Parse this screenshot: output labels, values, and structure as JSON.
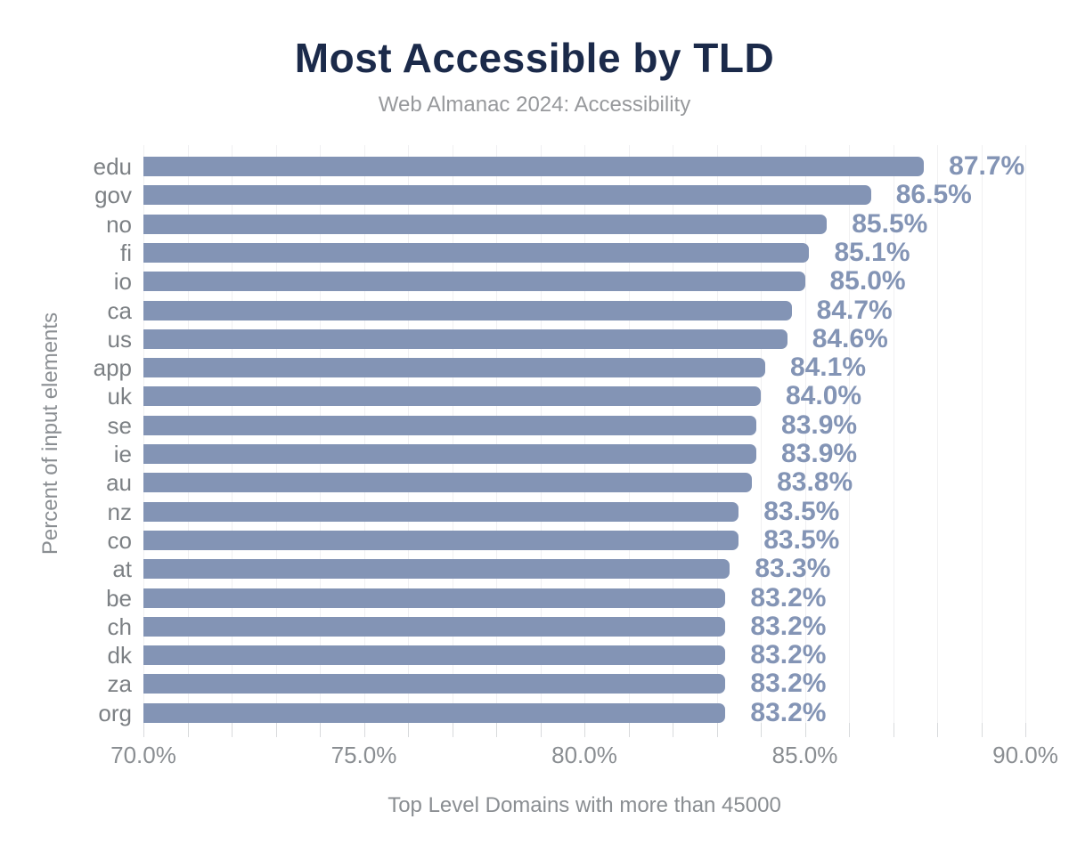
{
  "chart_data": {
    "type": "bar",
    "orientation": "horizontal",
    "title": "Most Accessible by TLD",
    "subtitle": "Web Almanac 2024: Accessibility",
    "xlabel": "Top Level Domains with more than 45000",
    "ylabel": "Percent of input elements",
    "xlim": [
      70,
      90
    ],
    "grid": "vertical gridlines every 1%, ticks below axis every 1%",
    "legend": "none",
    "x_ticks": [
      {
        "value": 70,
        "label": "70.0%"
      },
      {
        "value": 75,
        "label": "75.0%"
      },
      {
        "value": 80,
        "label": "80.0%"
      },
      {
        "value": 85,
        "label": "85.0%"
      },
      {
        "value": 90,
        "label": "90.0%"
      }
    ],
    "categories": [
      "edu",
      "gov",
      "no",
      "fi",
      "io",
      "ca",
      "us",
      "app",
      "uk",
      "se",
      "ie",
      "au",
      "nz",
      "co",
      "at",
      "be",
      "ch",
      "dk",
      "za",
      "org"
    ],
    "values": [
      87.7,
      86.5,
      85.5,
      85.1,
      85.0,
      84.7,
      84.6,
      84.1,
      84.0,
      83.9,
      83.9,
      83.8,
      83.5,
      83.5,
      83.3,
      83.2,
      83.2,
      83.2,
      83.2,
      83.2
    ],
    "value_labels": [
      "87.7%",
      "86.5%",
      "85.5%",
      "85.1%",
      "85.0%",
      "84.7%",
      "84.6%",
      "84.1%",
      "84.0%",
      "83.9%",
      "83.9%",
      "83.8%",
      "83.5%",
      "83.5%",
      "83.3%",
      "83.2%",
      "83.2%",
      "83.2%",
      "83.2%",
      "83.2%"
    ],
    "colors": {
      "bar": "#8394b5",
      "value_label": "#8394b5",
      "title": "#1b2a4a",
      "subtitle": "#97999c",
      "axis_text": "#8a8e92",
      "category_text": "#7c8084",
      "gridline": "#f0f0f2",
      "tick_mark": "#d8dadc",
      "background": "#ffffff"
    }
  }
}
